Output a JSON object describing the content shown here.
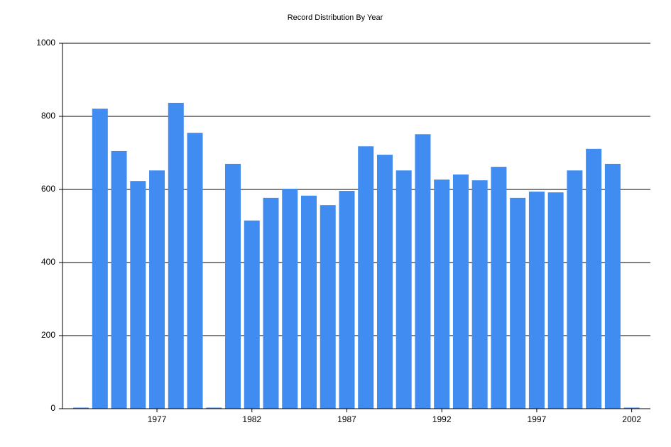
{
  "chart_data": {
    "type": "bar",
    "title": "Record Distribution By Year",
    "categories": [
      null,
      null,
      null,
      null,
      "1977",
      null,
      null,
      null,
      null,
      "1982",
      null,
      null,
      null,
      null,
      "1987",
      null,
      null,
      null,
      null,
      "1992",
      null,
      null,
      null,
      null,
      "1997",
      null,
      null,
      null,
      null,
      "2002"
    ],
    "values": [
      3,
      821,
      705,
      623,
      652,
      837,
      755,
      3,
      670,
      515,
      577,
      602,
      583,
      557,
      596,
      718,
      695,
      652,
      751,
      627,
      641,
      625,
      662,
      577,
      594,
      592,
      652,
      711,
      670,
      3
    ],
    "color": "#418cf0",
    "ylim": [
      0,
      1000
    ],
    "yticks": [
      0,
      200,
      400,
      600,
      800,
      1000
    ],
    "grid": true
  }
}
